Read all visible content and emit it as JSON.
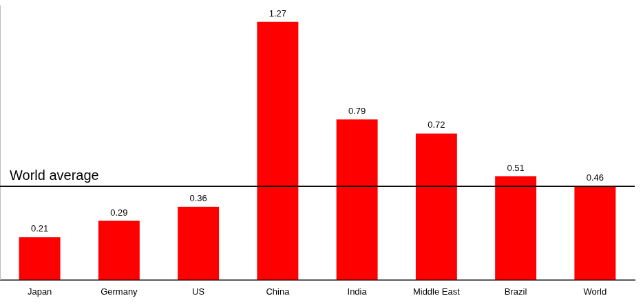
{
  "chart_data": {
    "type": "bar",
    "categories": [
      "Japan",
      "Germany",
      "US",
      "China",
      "India",
      "Middle East",
      "Brazil",
      "World"
    ],
    "values": [
      0.21,
      0.29,
      0.36,
      1.27,
      0.79,
      0.72,
      0.51,
      0.46
    ],
    "color": "#ff0000",
    "ylim": [
      0,
      1.35
    ],
    "grid": false,
    "data_labels": true,
    "tick_labels": "x",
    "annotations": [
      {
        "text": "World average",
        "y": 0.46
      }
    ]
  }
}
